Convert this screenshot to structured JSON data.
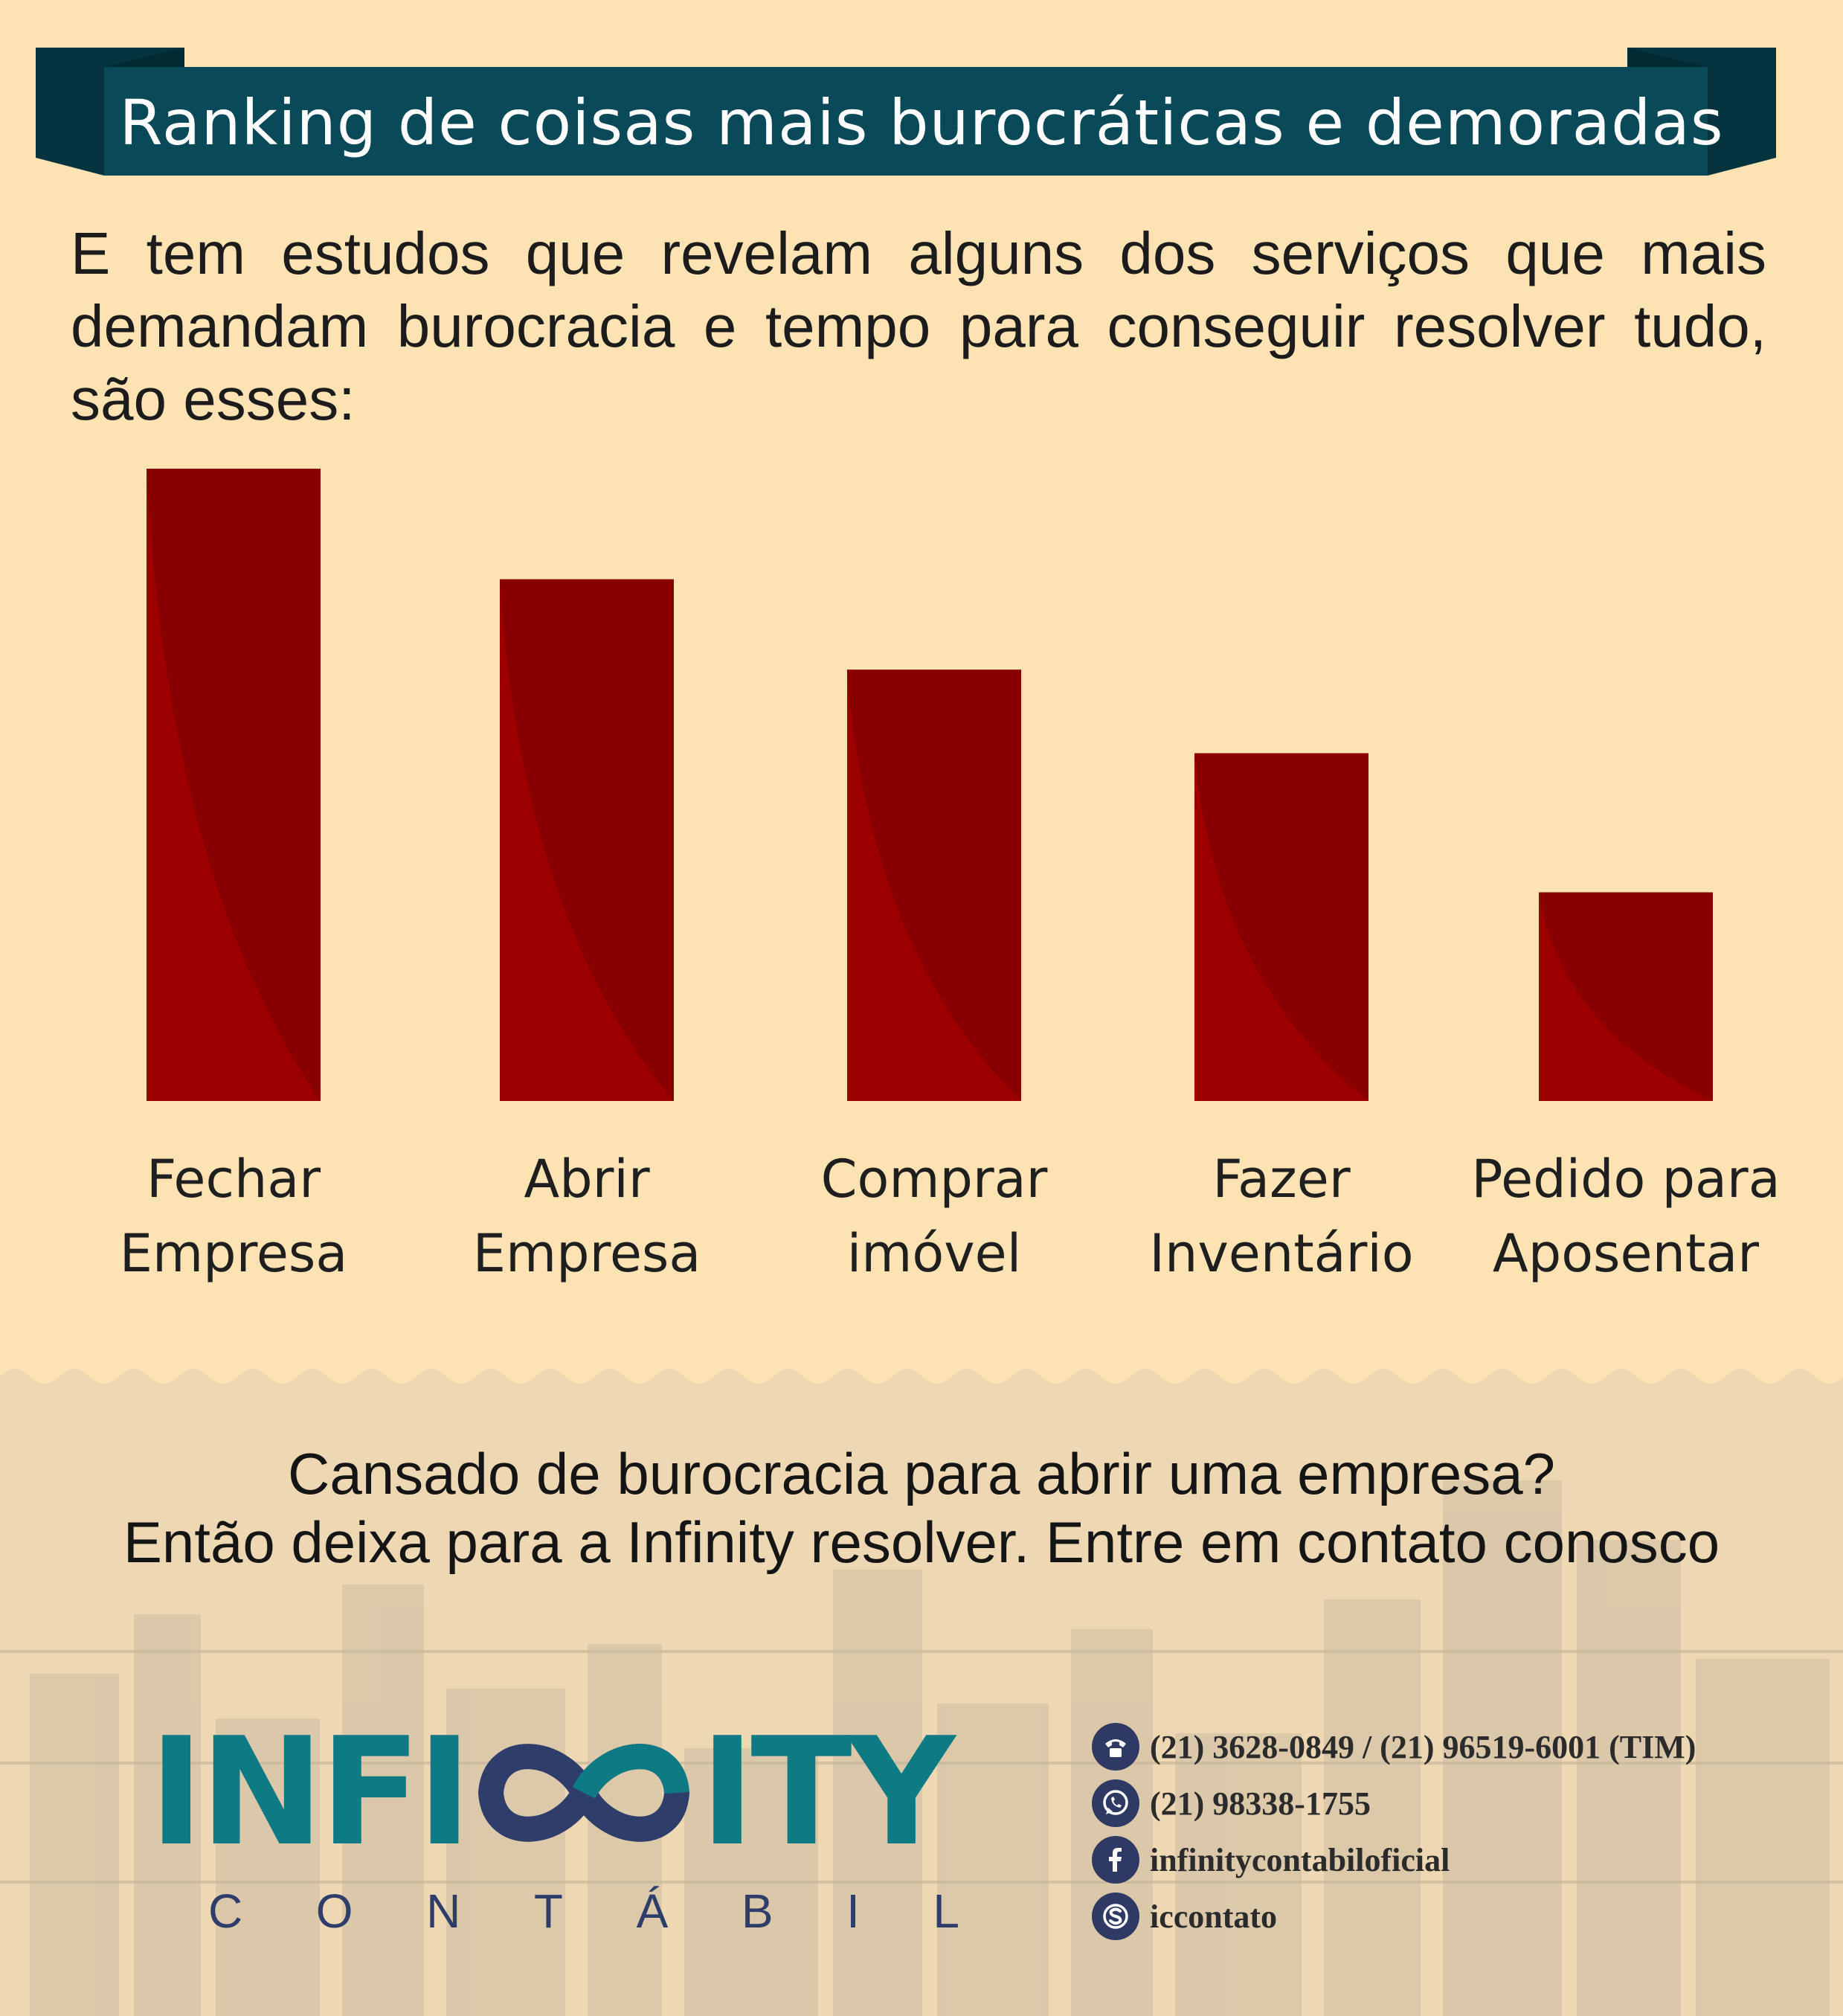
{
  "header": {
    "title": "Ranking de coisas mais burocráticas e demoradas"
  },
  "intro": {
    "text": "E tem estudos que revelam alguns dos serviços que mais demandam burocracia e tempo para conseguir resolver tudo, são esses:"
  },
  "chart_data": {
    "type": "bar",
    "categories": [
      [
        "Fechar",
        "Empresa"
      ],
      [
        "Abrir",
        "Empresa"
      ],
      [
        "Comprar",
        "imóvel"
      ],
      [
        "Fazer",
        "Inventário"
      ],
      [
        "Pedido para",
        "Aposentar"
      ]
    ],
    "values": [
      100,
      82.5,
      68.2,
      55,
      33
    ],
    "ylim": [
      0,
      100
    ],
    "grid": false,
    "legend": "none",
    "colors": {
      "bar_light": "#9c0000",
      "bar_dark": "#880000"
    }
  },
  "cta": {
    "line1": "Cansado de burocracia para abrir uma empresa?",
    "line2": "Então deixa para a Infinity resolver. Entre em contato conosco"
  },
  "logo": {
    "word_left": "INFI",
    "word_right": "ITY",
    "subtitle": [
      "C",
      "O",
      "N",
      "T",
      "Á",
      "B",
      "I",
      "L"
    ],
    "colors": {
      "teal": "#0e7a84",
      "navy": "#2f3d6b"
    }
  },
  "contacts": [
    {
      "icon": "phone-icon",
      "text": "(21) 3628-0849 / (21) 96519-6001 (TIM)"
    },
    {
      "icon": "whatsapp-icon",
      "text": "(21) 98338-1755"
    },
    {
      "icon": "facebook-icon",
      "text": "infinitycontabiloficial"
    },
    {
      "icon": "skype-icon",
      "text": "iccontato"
    }
  ],
  "colors": {
    "background": "#fde3b3",
    "banner": "#0a4a58",
    "banner_dark": "#05343f"
  }
}
